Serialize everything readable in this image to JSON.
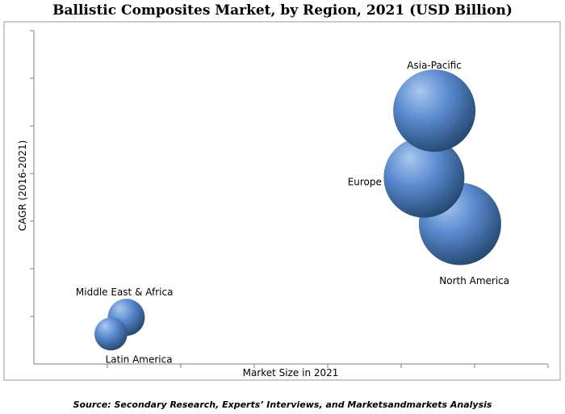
{
  "chart_data": {
    "type": "scatter",
    "title": "Ballistic Composites Market, by Region, 2021 (USD Billion)",
    "xlabel": "Market Size in 2021",
    "ylabel": "CAGR (2016-2021)",
    "grid": false,
    "tick_labels": false,
    "series": [
      {
        "name": "North America",
        "x": 0.83,
        "y": 0.42,
        "size": 1.0
      },
      {
        "name": "Europe",
        "x": 0.76,
        "y": 0.56,
        "size": 0.98
      },
      {
        "name": "Asia-Pacific",
        "x": 0.78,
        "y": 0.76,
        "size": 1.0
      },
      {
        "name": "Middle East & Africa",
        "x": 0.18,
        "y": 0.14,
        "size": 0.45
      },
      {
        "name": "Latin America",
        "x": 0.15,
        "y": 0.09,
        "size": 0.4
      }
    ]
  },
  "footer": {
    "source": "Source: Secondary Research, Experts’ Interviews, and Marketsandmarkets Analysis"
  },
  "colors": {
    "bubble_light": "#a9c9ee",
    "bubble_mid": "#5b8bd0",
    "bubble_dark": "#23466f",
    "frame": "#9a9a9a",
    "axis": "#7f7f7f"
  }
}
